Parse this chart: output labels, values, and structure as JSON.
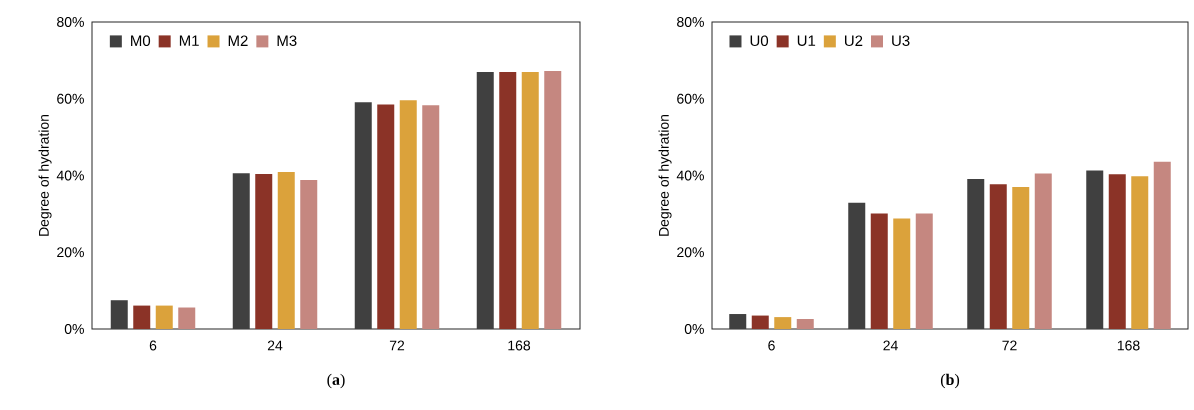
{
  "chart_data": [
    {
      "type": "bar",
      "ylabel": "Degree of hydration",
      "categories": [
        "6",
        "24",
        "72",
        "168"
      ],
      "series": [
        {
          "name": "M0",
          "color": "#404040",
          "values": [
            7.5,
            40.6,
            59.1,
            67.0
          ]
        },
        {
          "name": "M1",
          "color": "#8b3327",
          "values": [
            6.1,
            40.4,
            58.5,
            67.0
          ]
        },
        {
          "name": "M2",
          "color": "#dba23b",
          "values": [
            6.1,
            40.9,
            59.6,
            67.0
          ]
        },
        {
          "name": "M3",
          "color": "#c58780",
          "values": [
            5.6,
            38.8,
            58.3,
            67.2
          ]
        }
      ],
      "ylim": [
        0,
        80
      ],
      "yticks": [
        {
          "value": 0,
          "label": "0%"
        },
        {
          "value": 20,
          "label": "20%"
        },
        {
          "value": 40,
          "label": "40%"
        },
        {
          "value": 60,
          "label": "60%"
        },
        {
          "value": 80,
          "label": "80%"
        }
      ],
      "legend": "top left",
      "annotations": [
        "(**a**)"
      ]
    },
    {
      "type": "bar",
      "ylabel": "Degree of hydration",
      "categories": [
        "6",
        "24",
        "72",
        "168"
      ],
      "series": [
        {
          "name": "U0",
          "color": "#404040",
          "values": [
            3.9,
            32.9,
            39.1,
            41.3
          ]
        },
        {
          "name": "U1",
          "color": "#8b3327",
          "values": [
            3.5,
            30.1,
            37.7,
            40.3
          ]
        },
        {
          "name": "U2",
          "color": "#dba23b",
          "values": [
            3.1,
            28.8,
            37.0,
            39.8
          ]
        },
        {
          "name": "U3",
          "color": "#c58780",
          "values": [
            2.6,
            30.1,
            40.5,
            43.6
          ]
        }
      ],
      "ylim": [
        0,
        80
      ],
      "yticks": [
        {
          "value": 0,
          "label": "0%"
        },
        {
          "value": 20,
          "label": "20%"
        },
        {
          "value": 40,
          "label": "40%"
        },
        {
          "value": 60,
          "label": "60%"
        },
        {
          "value": 80,
          "label": "80%"
        }
      ],
      "legend": "top left",
      "annotations": [
        "(**b**)"
      ]
    }
  ]
}
